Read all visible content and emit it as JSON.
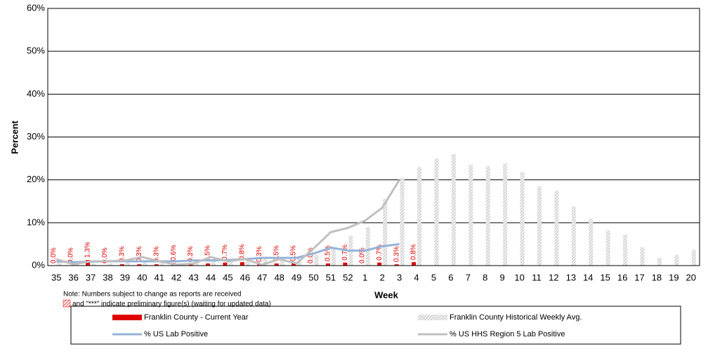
{
  "chart_data": {
    "type": "bar",
    "y_label": "Percent",
    "x_label": "Week",
    "notes": [
      "Note: Numbers subject to change as reports are received",
      "and \"***\" indicate preliminary figure(s) (waiting for updated data)"
    ],
    "categories": [
      "35",
      "36",
      "37",
      "38",
      "39",
      "40",
      "41",
      "42",
      "43",
      "44",
      "45",
      "46",
      "47",
      "48",
      "49",
      "50",
      "51",
      "52",
      "1",
      "2",
      "3",
      "4",
      "5",
      "6",
      "7",
      "8",
      "9",
      "10",
      "11",
      "12",
      "13",
      "14",
      "15",
      "16",
      "17",
      "18",
      "19",
      "20"
    ],
    "series": [
      {
        "name": "Franklin County - Current Year",
        "type": "bar",
        "color": "#e00000",
        "values": [
          0.0,
          0.0,
          1.3,
          0.0,
          0.3,
          0.3,
          0.3,
          0.6,
          0.3,
          0.5,
          0.7,
          0.8,
          0.3,
          0.5,
          0.5,
          0.0,
          0.5,
          0.7,
          0.0,
          0.7,
          0.3,
          0.8,
          null,
          null,
          null,
          null,
          null,
          null,
          null,
          null,
          null,
          null,
          null,
          null,
          null,
          null,
          null,
          null
        ],
        "value_labels": [
          "0.0%",
          "0.0%",
          "1.3%",
          "0.0%",
          "0.3%",
          "0.3%",
          "0.3%",
          "0.6%",
          "0.3%",
          "0.5%",
          "0.7%",
          "0.8%",
          "0.3%",
          "0.5%",
          "0.5%",
          "0.0%",
          "0.5%",
          "0.7%",
          "0.0%",
          "0.7%",
          "0.3%",
          "0.8%",
          null,
          null,
          null,
          null,
          null,
          null,
          null,
          null,
          null,
          null,
          null,
          null,
          null,
          null,
          null,
          null
        ]
      },
      {
        "name": "Franklin County Historical Weekly Avg.",
        "type": "bar",
        "hatch": true,
        "color": "#c0c0c0",
        "values": [
          1.0,
          0.5,
          0.5,
          0.5,
          0.8,
          1.0,
          0.8,
          0.5,
          1.0,
          1.0,
          1.2,
          1.5,
          1.5,
          1.5,
          2.0,
          2.5,
          4.0,
          7.0,
          9.0,
          15.5,
          20.5,
          23.0,
          25.0,
          26.0,
          23.5,
          23.2,
          23.8,
          21.8,
          18.5,
          17.5,
          13.8,
          11.0,
          8.2,
          7.2,
          4.3,
          1.8,
          2.5,
          3.7
        ]
      },
      {
        "name": "% US Lab Positive",
        "type": "line",
        "color": "#95b3d7",
        "values": [
          1.0,
          0.8,
          0.9,
          1.0,
          1.0,
          1.0,
          1.0,
          1.0,
          1.2,
          1.2,
          1.3,
          1.5,
          1.8,
          1.8,
          1.8,
          2.8,
          4.2,
          3.5,
          3.5,
          4.5,
          5.0,
          null,
          null,
          null,
          null,
          null,
          null,
          null,
          null,
          null,
          null,
          null,
          null,
          null,
          null,
          null,
          null,
          null
        ]
      },
      {
        "name": "% US HHS Region 5 Lab Positive",
        "type": "line",
        "color": "#c0c0c0",
        "values": [
          1.5,
          0.3,
          1.0,
          1.0,
          1.2,
          2.0,
          1.0,
          0.2,
          0.5,
          2.0,
          1.0,
          1.5,
          0.2,
          1.5,
          0.5,
          4.0,
          7.8,
          8.8,
          10.5,
          13.5,
          20.0,
          null,
          null,
          null,
          null,
          null,
          null,
          null,
          null,
          null,
          null,
          null,
          null,
          null,
          null,
          null,
          null,
          null
        ]
      }
    ],
    "ylim": [
      0,
      60
    ],
    "yticks": [
      {
        "value": 0,
        "label": "0%"
      },
      {
        "value": 10,
        "label": "10%"
      },
      {
        "value": 20,
        "label": "20%"
      },
      {
        "value": 30,
        "label": "30%"
      },
      {
        "value": 40,
        "label": "40%"
      },
      {
        "value": 50,
        "label": "50%"
      },
      {
        "value": 60,
        "label": "60%"
      }
    ],
    "grid": true
  }
}
